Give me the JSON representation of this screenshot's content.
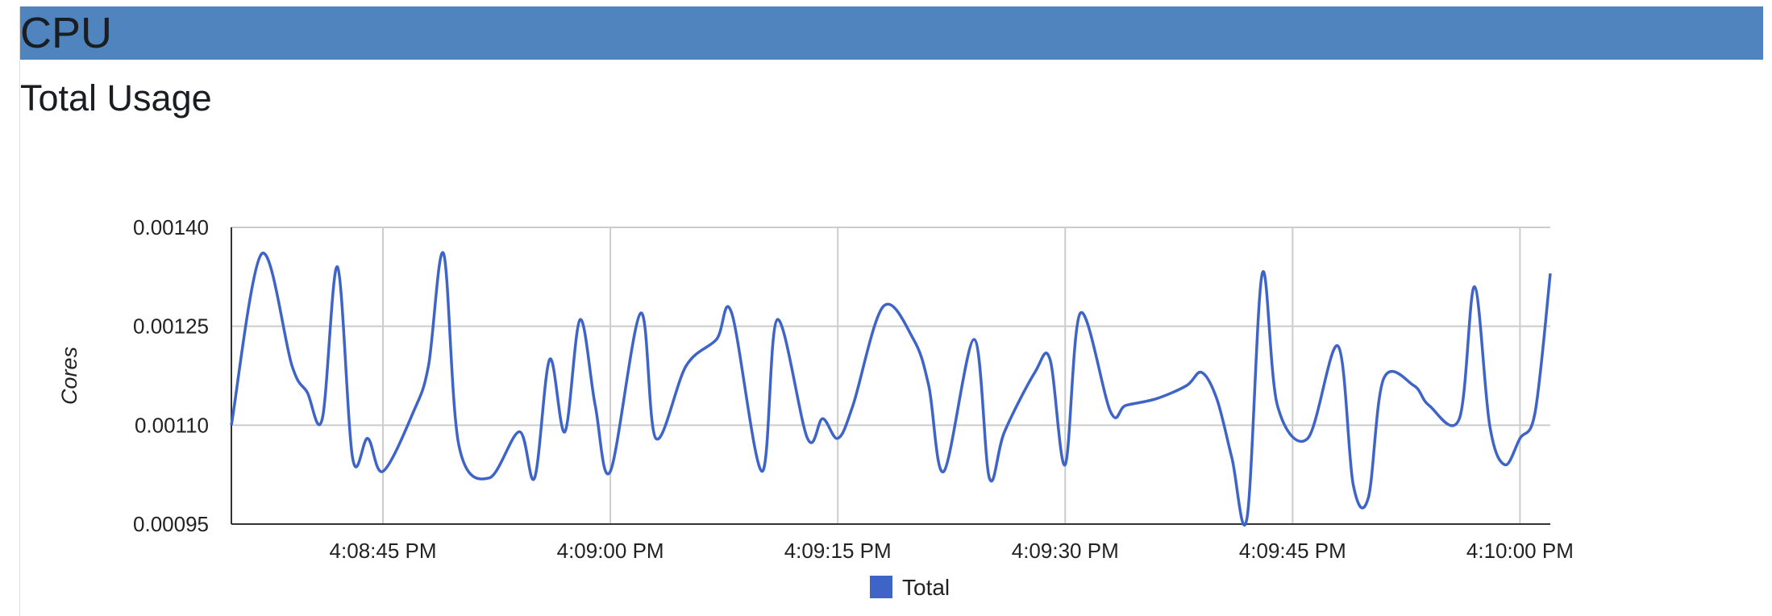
{
  "section": {
    "title": "CPU"
  },
  "panel": {
    "title": "Total Usage"
  },
  "chart_data": {
    "type": "line",
    "title": "",
    "xlabel": "",
    "ylabel": "Cores",
    "ylim": [
      0.00095,
      0.0014
    ],
    "yticks": [
      "0.00140",
      "0.00125",
      "0.00110",
      "0.00095"
    ],
    "xticks": [
      "4:08:45 PM",
      "4:09:00 PM",
      "4:09:15 PM",
      "4:09:30 PM",
      "4:09:45 PM",
      "4:10:00 PM"
    ],
    "x_range": [
      "4:08:35 PM",
      "4:10:02 PM"
    ],
    "grid": true,
    "legend": "bottom",
    "colors": {
      "line": "#3f64c8",
      "grid": "#cccccc",
      "axis": "#333333"
    },
    "series": [
      {
        "name": "Total",
        "x": [
          "4:08:35 PM",
          "4:08:37 PM",
          "4:08:39 PM",
          "4:08:40 PM",
          "4:08:41 PM",
          "4:08:42 PM",
          "4:08:43 PM",
          "4:08:44 PM",
          "4:08:45 PM",
          "4:08:47 PM",
          "4:08:48 PM",
          "4:08:49 PM",
          "4:08:50 PM",
          "4:08:52 PM",
          "4:08:54 PM",
          "4:08:55 PM",
          "4:08:56 PM",
          "4:08:57 PM",
          "4:08:58 PM",
          "4:08:59 PM",
          "4:09:00 PM",
          "4:09:02 PM",
          "4:09:03 PM",
          "4:09:05 PM",
          "4:09:07 PM",
          "4:09:08 PM",
          "4:09:10 PM",
          "4:09:11 PM",
          "4:09:13 PM",
          "4:09:14 PM",
          "4:09:15 PM",
          "4:09:16 PM",
          "4:09:18 PM",
          "4:09:20 PM",
          "4:09:21 PM",
          "4:09:22 PM",
          "4:09:24 PM",
          "4:09:25 PM",
          "4:09:26 PM",
          "4:09:28 PM",
          "4:09:29 PM",
          "4:09:30 PM",
          "4:09:31 PM",
          "4:09:33 PM",
          "4:09:34 PM",
          "4:09:36 PM",
          "4:09:38 PM",
          "4:09:39 PM",
          "4:09:40 PM",
          "4:09:41 PM",
          "4:09:42 PM",
          "4:09:43 PM",
          "4:09:44 PM",
          "4:09:46 PM",
          "4:09:48 PM",
          "4:09:49 PM",
          "4:09:50 PM",
          "4:09:51 PM",
          "4:09:53 PM",
          "4:09:54 PM",
          "4:09:56 PM",
          "4:09:57 PM",
          "4:09:58 PM",
          "4:09:59 PM",
          "4:10:00 PM",
          "4:10:01 PM",
          "4:10:02 PM"
        ],
        "values": [
          0.0011,
          0.00136,
          0.00119,
          0.00115,
          0.00111,
          0.00134,
          0.00105,
          0.00108,
          0.00103,
          0.00112,
          0.00119,
          0.00136,
          0.00107,
          0.00102,
          0.00109,
          0.00102,
          0.0012,
          0.00109,
          0.00126,
          0.00113,
          0.00103,
          0.00127,
          0.00108,
          0.00119,
          0.00123,
          0.00127,
          0.00103,
          0.00126,
          0.00108,
          0.00111,
          0.00108,
          0.00113,
          0.00128,
          0.00123,
          0.00116,
          0.00103,
          0.00123,
          0.00102,
          0.00109,
          0.00118,
          0.0012,
          0.00104,
          0.00127,
          0.00112,
          0.00113,
          0.00114,
          0.00116,
          0.00118,
          0.00114,
          0.00105,
          0.00096,
          0.00133,
          0.00113,
          0.00108,
          0.00122,
          0.00101,
          0.00099,
          0.00117,
          0.00116,
          0.00113,
          0.00111,
          0.00131,
          0.0011,
          0.00104,
          0.00108,
          0.00112,
          0.00133
        ]
      }
    ]
  }
}
